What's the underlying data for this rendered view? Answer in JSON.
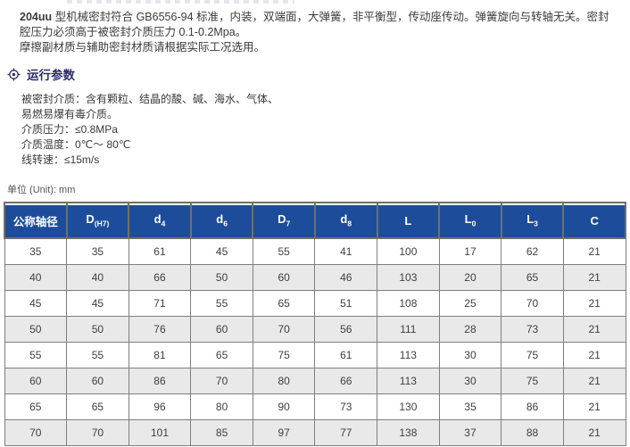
{
  "intro": {
    "prefix": "204uu",
    "line1_rest": " 型机械密封符合 GB6556-94 标准，内装，双端面，大弹簧，非平衡型，传动座传动。弹簧旋向与转轴无关。密封",
    "line2": "腔压力必须高于被密封介质压力 0.1-0.2Mpa。",
    "line3": "摩擦副材质与辅助密封材质请根据实际工况选用。"
  },
  "section": {
    "title": "运行参数",
    "icon": "crosshair-icon"
  },
  "params": {
    "lines": [
      "被密封介质：含有颗粒、结晶的酸、碱、海水、气体、",
      "易燃易爆有毒介质。",
      "介质压力：≤0.8MPa",
      "介质温度：0℃～ 80℃",
      "线转速：≤15m/s"
    ]
  },
  "unit_label": "单位 (Unit): mm",
  "colors": {
    "table_header_blue": "#1d4d9a",
    "row_alt_gray": "#e9e9e9",
    "section_navy": "#2d2d68"
  },
  "table": {
    "columns": [
      {
        "main": "公称轴径",
        "sub": ""
      },
      {
        "main": "D",
        "sub": "(H7)"
      },
      {
        "main": "d",
        "sub": "4"
      },
      {
        "main": "d",
        "sub": "6"
      },
      {
        "main": "D",
        "sub": "7"
      },
      {
        "main": "d",
        "sub": "8"
      },
      {
        "main": "L",
        "sub": ""
      },
      {
        "main": "L",
        "sub": "0"
      },
      {
        "main": "L",
        "sub": "3"
      },
      {
        "main": "C",
        "sub": ""
      }
    ],
    "rows": [
      [
        "35",
        "35",
        "61",
        "45",
        "55",
        "41",
        "100",
        "17",
        "62",
        "21"
      ],
      [
        "40",
        "40",
        "66",
        "50",
        "60",
        "46",
        "103",
        "20",
        "65",
        "21"
      ],
      [
        "45",
        "45",
        "71",
        "55",
        "65",
        "51",
        "108",
        "25",
        "70",
        "21"
      ],
      [
        "50",
        "50",
        "76",
        "60",
        "70",
        "56",
        "111",
        "28",
        "73",
        "21"
      ],
      [
        "55",
        "55",
        "81",
        "65",
        "75",
        "61",
        "113",
        "30",
        "75",
        "21"
      ],
      [
        "60",
        "60",
        "86",
        "70",
        "80",
        "66",
        "113",
        "30",
        "75",
        "21"
      ],
      [
        "65",
        "65",
        "96",
        "80",
        "90",
        "73",
        "130",
        "35",
        "86",
        "21"
      ],
      [
        "70",
        "70",
        "101",
        "85",
        "97",
        "77",
        "138",
        "37",
        "88",
        "21"
      ]
    ]
  }
}
